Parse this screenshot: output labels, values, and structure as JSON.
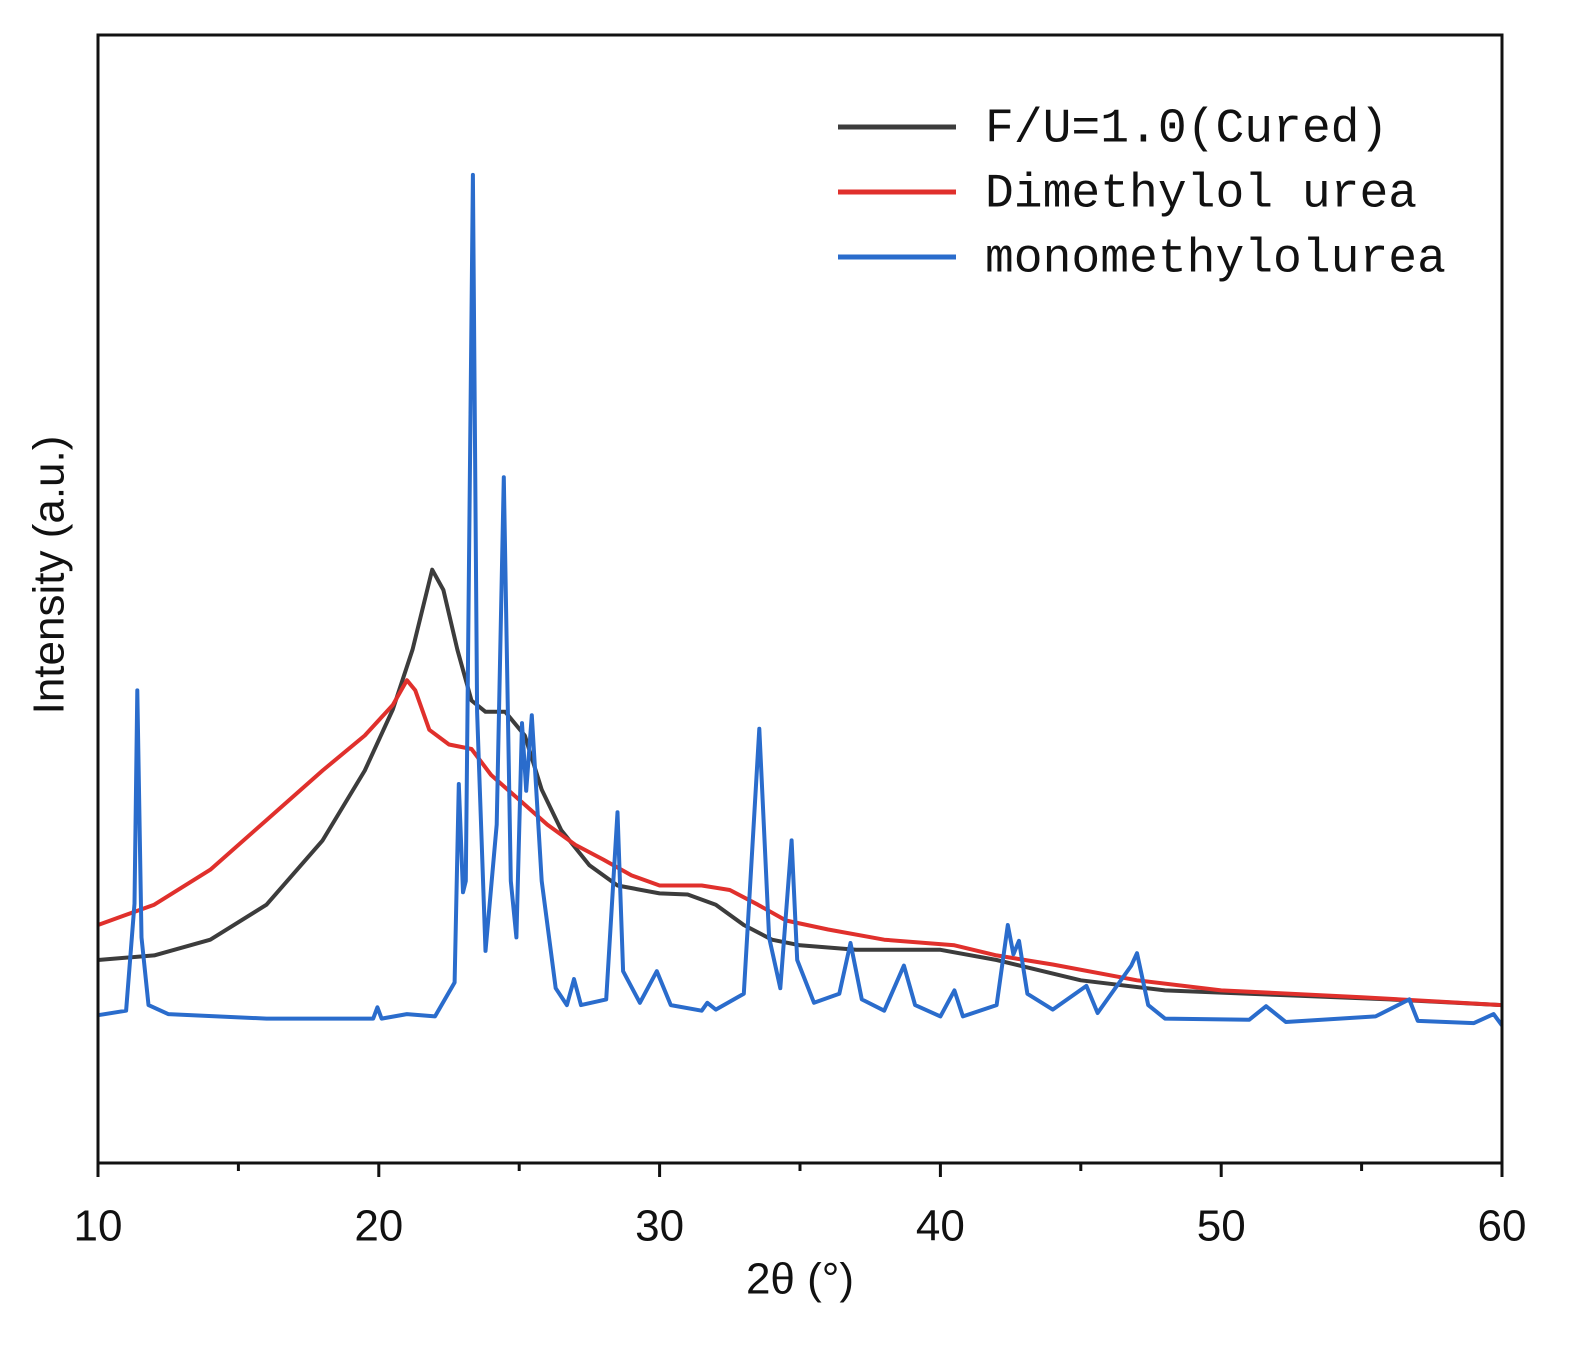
{
  "chart_data": {
    "type": "line",
    "xlabel": "2θ (°)",
    "ylabel": "Intensity (a.u.)",
    "xlim": [
      10,
      60
    ],
    "xticks": [
      10,
      20,
      30,
      40,
      50,
      60
    ],
    "xminor_ticks": [
      15,
      25,
      35,
      45,
      55
    ],
    "ylim": [
      0,
      100
    ],
    "legend": "upper right",
    "series": [
      {
        "name": "F/U=1.0(Cured)",
        "color": "#3c3c3c",
        "x": [
          10,
          12,
          14,
          16,
          18,
          19.5,
          20.5,
          21.2,
          21.9,
          22.3,
          22.8,
          23.3,
          23.8,
          24.5,
          25.2,
          25.8,
          26.5,
          27.5,
          28.5,
          30,
          31,
          32,
          33,
          34,
          35,
          37,
          40,
          42,
          45,
          48,
          52,
          56,
          60
        ],
        "values": [
          18.0,
          18.4,
          19.8,
          22.9,
          28.6,
          34.8,
          40.2,
          45.5,
          52.6,
          50.8,
          45.5,
          41.0,
          40.0,
          40.0,
          37.9,
          33.1,
          29.5,
          26.4,
          24.6,
          23.9,
          23.8,
          22.9,
          21.1,
          19.8,
          19.3,
          18.9,
          18.9,
          18.0,
          16.2,
          15.3,
          14.9,
          14.5,
          14.0
        ]
      },
      {
        "name": "Dimethylol urea",
        "color": "#e0302c",
        "x": [
          10,
          12,
          14,
          16,
          18,
          19.5,
          20.5,
          21.0,
          21.3,
          21.8,
          22.5,
          23.3,
          24,
          25,
          26,
          27,
          28,
          29,
          30,
          31.5,
          32.5,
          33.5,
          34.5,
          36,
          38,
          40.5,
          42,
          44,
          47,
          50,
          55,
          60
        ],
        "values": [
          21.1,
          22.9,
          26.0,
          30.4,
          34.8,
          37.9,
          40.6,
          42.8,
          41.9,
          38.4,
          37.1,
          36.7,
          34.4,
          32.2,
          30.0,
          28.2,
          26.9,
          25.5,
          24.6,
          24.6,
          24.2,
          22.9,
          21.5,
          20.7,
          19.8,
          19.3,
          18.4,
          17.6,
          16.2,
          15.3,
          14.7,
          14.0
        ]
      },
      {
        "name": "monomethylolurea",
        "color": "#2a6ccc",
        "x": [
          10,
          11.0,
          11.3,
          11.4,
          11.55,
          11.8,
          12.5,
          16,
          19.8,
          19.95,
          20.1,
          21,
          22,
          22.7,
          22.85,
          23.0,
          23.1,
          23.35,
          23.5,
          23.8,
          24.2,
          24.45,
          24.7,
          24.9,
          25.1,
          25.25,
          25.45,
          25.8,
          26.3,
          26.7,
          26.95,
          27.2,
          28.1,
          28.5,
          28.7,
          29.3,
          29.9,
          30.4,
          31.5,
          31.7,
          32,
          33,
          33.55,
          33.9,
          34.3,
          34.7,
          34.9,
          35.5,
          36.4,
          36.8,
          37.2,
          38,
          38.7,
          39.1,
          40,
          40.5,
          40.8,
          42,
          42.4,
          42.6,
          42.8,
          43.1,
          44,
          45.2,
          45.6,
          46.8,
          47,
          47.4,
          48,
          51,
          51.6,
          52.3,
          55.5,
          56.7,
          57,
          59,
          59.7,
          60
        ],
        "values": [
          13.1,
          13.5,
          23,
          41.9,
          20,
          14,
          13.2,
          12.8,
          12.8,
          13.8,
          12.8,
          13.2,
          13.0,
          16,
          33.6,
          24,
          25,
          87.6,
          40,
          18.8,
          30,
          60.8,
          25,
          20,
          39,
          33,
          39.7,
          25,
          15.5,
          14.0,
          16.3,
          14,
          14.5,
          31.1,
          17,
          14.2,
          17,
          14,
          13.5,
          14.2,
          13.6,
          15,
          38.5,
          20,
          15.5,
          28.6,
          18,
          14.2,
          15,
          19.5,
          14.5,
          13.5,
          17.5,
          14,
          13,
          15.3,
          13,
          14,
          21.1,
          18.5,
          19.7,
          15,
          13.6,
          15.7,
          13.3,
          17.5,
          18.6,
          14,
          12.8,
          12.7,
          13.9,
          12.5,
          13,
          14.5,
          12.6,
          12.4,
          13.2,
          12.2
        ]
      }
    ]
  }
}
